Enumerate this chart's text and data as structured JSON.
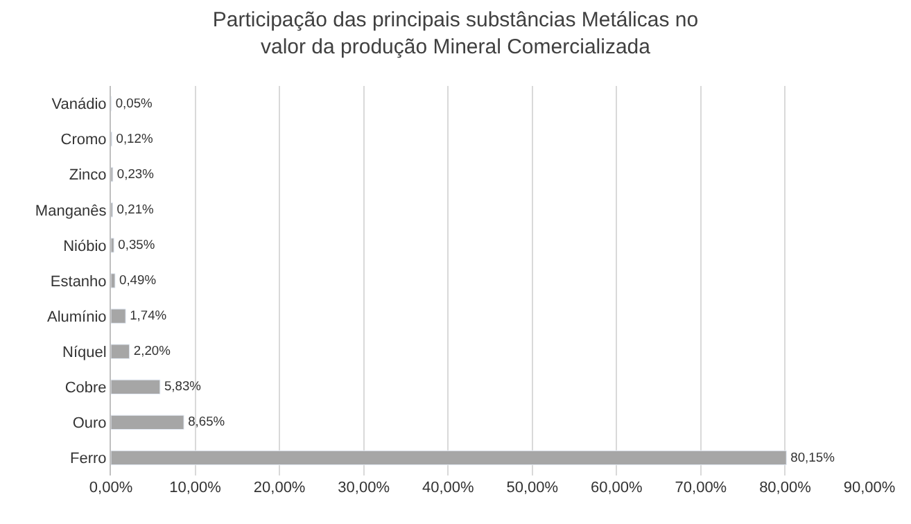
{
  "chart_data": {
    "type": "bar",
    "orientation": "horizontal",
    "title": "Participação das principais substâncias Metálicas no\nvalor da produção Mineral Comercializada",
    "categories": [
      "Vanádio",
      "Cromo",
      "Zinco",
      "Manganês",
      "Nióbio",
      "Estanho",
      "Alumínio",
      "Níquel",
      "Cobre",
      "Ouro",
      "Ferro"
    ],
    "values": [
      0.05,
      0.12,
      0.23,
      0.21,
      0.35,
      0.49,
      1.74,
      2.2,
      5.83,
      8.65,
      80.15
    ],
    "value_labels": [
      "0,05%",
      "0,12%",
      "0,23%",
      "0,21%",
      "0,35%",
      "0,49%",
      "1,74%",
      "2,20%",
      "5,83%",
      "8,65%",
      "80,15%"
    ],
    "color": "#a6a6a6",
    "xlim": [
      0,
      90
    ],
    "xticks": [
      {
        "value": 0,
        "label": "0,00%"
      },
      {
        "value": 10,
        "label": "10,00%"
      },
      {
        "value": 20,
        "label": "20,00%"
      },
      {
        "value": 30,
        "label": "30,00%"
      },
      {
        "value": 40,
        "label": "40,00%"
      },
      {
        "value": 50,
        "label": "50,00%"
      },
      {
        "value": 60,
        "label": "60,00%"
      },
      {
        "value": 70,
        "label": "70,00%"
      },
      {
        "value": 80,
        "label": "80,00%"
      },
      {
        "value": 90,
        "label": "90,00%"
      }
    ],
    "grid": "x"
  }
}
